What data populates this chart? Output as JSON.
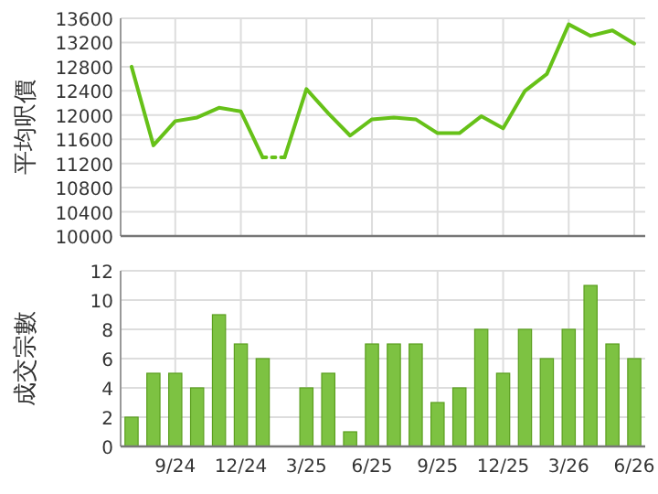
{
  "chart_data": [
    {
      "type": "line",
      "ylabel": "平均呎價",
      "categories": [
        null,
        null,
        null,
        null,
        null,
        null,
        null,
        null,
        null,
        null,
        null,
        null,
        null,
        null,
        null,
        null,
        null,
        null,
        null,
        null,
        null,
        null,
        null,
        null
      ],
      "tick_labels": "y",
      "ylim": [
        10000,
        13600
      ],
      "yticks": [
        10000,
        10400,
        10800,
        11200,
        11600,
        12000,
        12400,
        12800,
        13200,
        13600
      ],
      "grid": true,
      "series": [
        {
          "color": "#66c118",
          "line_style": "solid",
          "values": [
            12800,
            11500,
            11900,
            11960,
            12120,
            12060,
            11300,
            null,
            null,
            null,
            null,
            null,
            null,
            null,
            null,
            null,
            null,
            null,
            null,
            null,
            null,
            null,
            null,
            null
          ]
        },
        {
          "color": "#66c118",
          "line_style": "dotted",
          "values": [
            null,
            null,
            null,
            null,
            null,
            null,
            11300,
            11300,
            null,
            null,
            null,
            null,
            null,
            null,
            null,
            null,
            null,
            null,
            null,
            null,
            null,
            null,
            null,
            null
          ]
        },
        {
          "color": "#66c118",
          "line_style": "solid",
          "values": [
            null,
            null,
            null,
            null,
            null,
            null,
            null,
            11300,
            12430,
            12030,
            11660,
            11930,
            11960,
            11930,
            11700,
            11700,
            11980,
            11780,
            12400,
            12680,
            13500,
            13310,
            13400,
            13180
          ]
        }
      ]
    },
    {
      "type": "bar",
      "ylabel": "成交宗數",
      "categories": [
        null,
        null,
        "9/24",
        null,
        null,
        "12/24",
        null,
        null,
        "3/25",
        null,
        null,
        "6/25",
        null,
        null,
        "9/25",
        null,
        null,
        "12/25",
        null,
        null,
        "3/26",
        null,
        null,
        "6/26"
      ],
      "ylim": [
        0,
        12
      ],
      "yticks": [
        0,
        2,
        4,
        6,
        8,
        10,
        12
      ],
      "grid": true,
      "series": [
        {
          "color": "#7dc242",
          "values": [
            2,
            5,
            5,
            4,
            9,
            7,
            6,
            0,
            4,
            5,
            1,
            7,
            7,
            7,
            3,
            4,
            8,
            5,
            8,
            6,
            8,
            11,
            7,
            6
          ]
        }
      ]
    }
  ]
}
